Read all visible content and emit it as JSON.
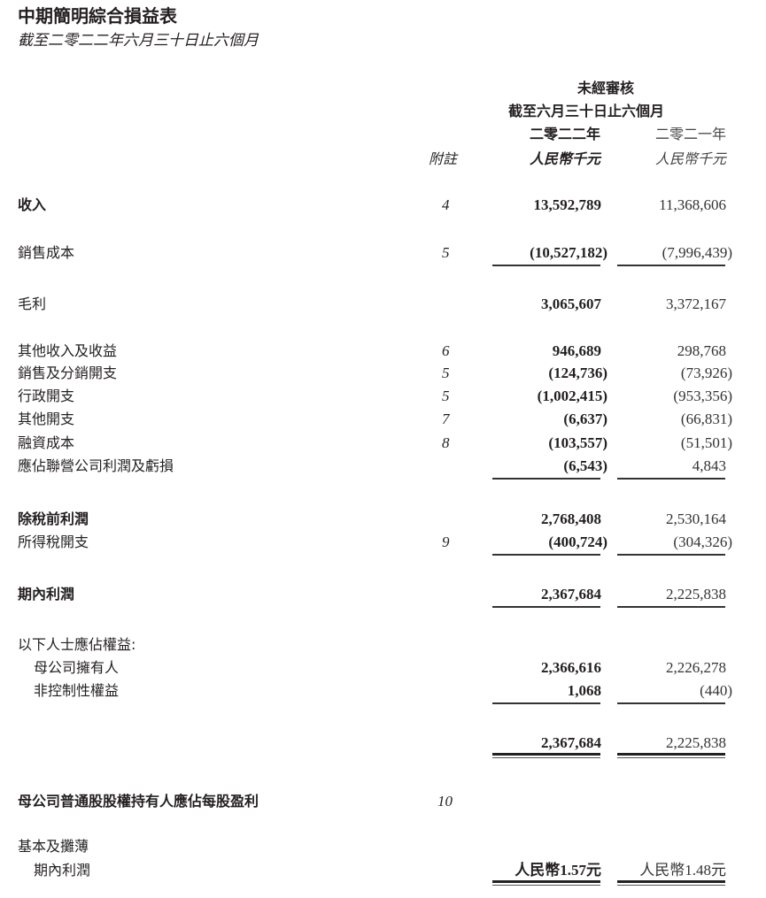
{
  "title": "中期簡明綜合損益表",
  "subtitle": "截至二零二二年六月三十日止六個月",
  "header": {
    "unaudited": "未經審核",
    "period": "截至六月三十日止六個月",
    "year_current": "二零二二年",
    "year_prior": "二零二一年",
    "notes": "附註",
    "unit_current": "人民幣千元",
    "unit_prior": "人民幣千元"
  },
  "rows": [
    {
      "label": "收入",
      "note": "4",
      "current": "13,592,789",
      "prior": "11,368,606",
      "bold": true
    },
    {
      "label": "銷售成本",
      "note": "5",
      "current": "(10,527,182)",
      "prior": "(7,996,439)"
    },
    {
      "label": "毛利",
      "note": "",
      "current": "3,065,607",
      "prior": "3,372,167"
    },
    {
      "label": "其他收入及收益",
      "note": "6",
      "current": "946,689",
      "prior": "298,768"
    },
    {
      "label": "銷售及分銷開支",
      "note": "5",
      "current": "(124,736)",
      "prior": "(73,926)"
    },
    {
      "label": "行政開支",
      "note": "5",
      "current": "(1,002,415)",
      "prior": "(953,356)"
    },
    {
      "label": "其他開支",
      "note": "7",
      "current": "(6,637)",
      "prior": "(66,831)"
    },
    {
      "label": "融資成本",
      "note": "8",
      "current": "(103,557)",
      "prior": "(51,501)"
    },
    {
      "label": "應佔聯營公司利潤及虧損",
      "note": "",
      "current": "(6,543)",
      "prior": "4,843"
    },
    {
      "label": "除稅前利潤",
      "note": "",
      "current": "2,768,408",
      "prior": "2,530,164",
      "bold": true
    },
    {
      "label": "所得稅開支",
      "note": "9",
      "current": "(400,724)",
      "prior": "(304,326)"
    },
    {
      "label": "期內利潤",
      "note": "",
      "current": "2,367,684",
      "prior": "2,225,838",
      "bold": true
    },
    {
      "label": "以下人士應佔權益:",
      "note": "",
      "current": "",
      "prior": ""
    },
    {
      "label": "母公司擁有人",
      "note": "",
      "current": "2,366,616",
      "prior": "2,226,278",
      "indent": true
    },
    {
      "label": "非控制性權益",
      "note": "",
      "current": "1,068",
      "prior": "(440)",
      "indent": true
    },
    {
      "label": "",
      "note": "",
      "current": "2,367,684",
      "prior": "2,225,838"
    },
    {
      "label": "母公司普通股股權持有人應佔每股盈利",
      "note": "10",
      "current": "",
      "prior": "",
      "bold": true
    },
    {
      "label": "基本及攤薄",
      "note": "",
      "current": "",
      "prior": ""
    },
    {
      "label": "期內利潤",
      "note": "",
      "current": "人民幣1.57元",
      "prior": "人民幣1.48元",
      "indent": true
    }
  ]
}
